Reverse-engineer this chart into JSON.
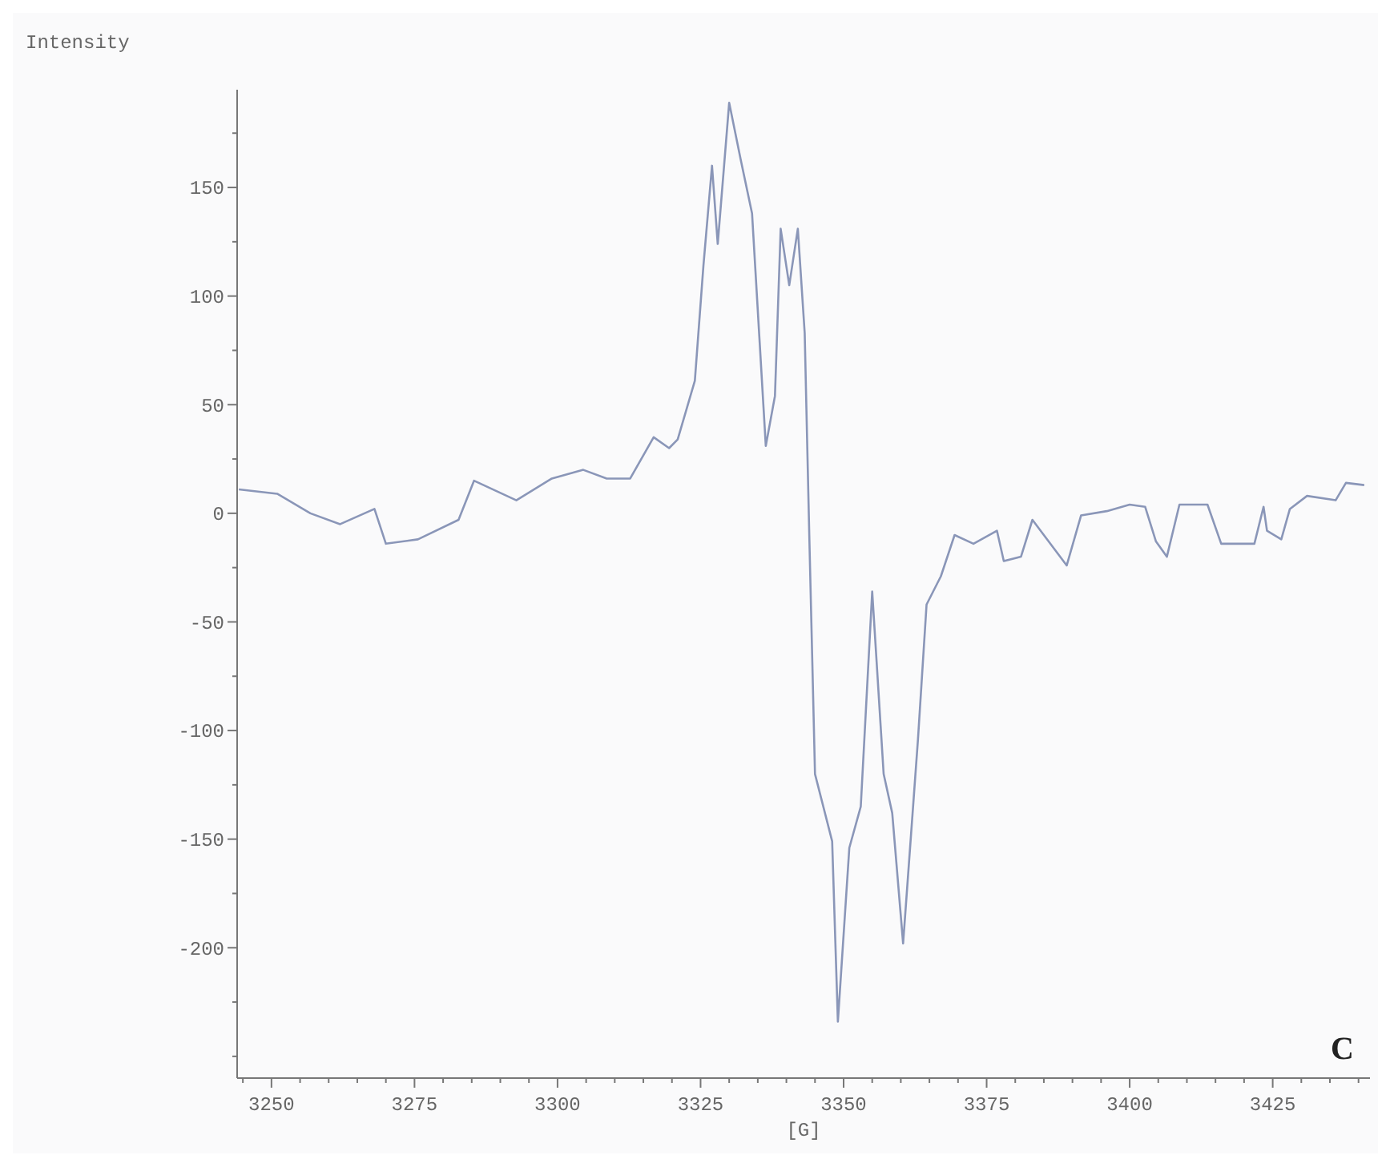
{
  "chart_data": {
    "type": "line",
    "ylabel": "Intensity",
    "xlabel": "[G]",
    "annotations": [
      "C"
    ],
    "x": [
      3244.3,
      3251,
      3256.8,
      3262,
      3268,
      3270,
      3275.6,
      3282.7,
      3285.4,
      3292.8,
      3299,
      3304.5,
      3308.6,
      3312.7,
      3316.8,
      3319.5,
      3321,
      3324,
      3325.5,
      3327,
      3328,
      3330,
      3332,
      3334,
      3336.4,
      3338,
      3339,
      3340.5,
      3342,
      3343.2,
      3344,
      3345,
      3348,
      3349,
      3351,
      3353,
      3355,
      3357,
      3358.5,
      3360.4,
      3363,
      3364.5,
      3367,
      3369.4,
      3372.7,
      3376.8,
      3378,
      3381,
      3383,
      3389,
      3391.5,
      3396,
      3400,
      3402.7,
      3404.6,
      3406.5,
      3408.7,
      3413.6,
      3416,
      3421.8,
      3423.4,
      3424,
      3426.5,
      3428,
      3431,
      3436,
      3437.8,
      3441
    ],
    "series": [
      {
        "color": "#8a96b8",
        "values": [
          11,
          9,
          0,
          -5,
          2,
          -14,
          -12,
          -3,
          15,
          6,
          16,
          20,
          16,
          16,
          35,
          30,
          34,
          61,
          114,
          160,
          124,
          189,
          163,
          138,
          31,
          54,
          131,
          105,
          131,
          83,
          -10,
          -120,
          -151,
          -234,
          -154,
          -135,
          -36,
          -120,
          -138,
          -198,
          -104,
          -42,
          -29,
          -10,
          -14,
          -8,
          -22,
          -20,
          -3,
          -24,
          -1,
          1,
          4,
          3,
          -13,
          -20,
          4,
          4,
          -14,
          -14,
          3,
          -8,
          -12,
          2,
          8,
          6,
          14,
          13
        ]
      }
    ],
    "xlim": [
      3244,
      3442
    ],
    "xticks": [
      {
        "value": 3245,
        "label": null
      },
      3250,
      {
        "value": 3255,
        "label": null
      },
      {
        "value": 3260,
        "label": null
      },
      {
        "value": 3265,
        "label": null
      },
      {
        "value": 3270,
        "label": null
      },
      3275,
      {
        "value": 3280,
        "label": null
      },
      {
        "value": 3285,
        "label": null
      },
      {
        "value": 3290,
        "label": null
      },
      {
        "value": 3295,
        "label": null
      },
      3300,
      {
        "value": 3305,
        "label": null
      },
      {
        "value": 3310,
        "label": null
      },
      {
        "value": 3315,
        "label": null
      },
      {
        "value": 3320,
        "label": null
      },
      3325,
      {
        "value": 3330,
        "label": null
      },
      {
        "value": 3335,
        "label": null
      },
      {
        "value": 3340,
        "label": null
      },
      {
        "value": 3345,
        "label": null
      },
      3350,
      {
        "value": 3355,
        "label": null
      },
      {
        "value": 3360,
        "label": null
      },
      {
        "value": 3365,
        "label": null
      },
      {
        "value": 3370,
        "label": null
      },
      3375,
      {
        "value": 3380,
        "label": null
      },
      {
        "value": 3385,
        "label": null
      },
      {
        "value": 3390,
        "label": null
      },
      {
        "value": 3395,
        "label": null
      },
      3400,
      {
        "value": 3405,
        "label": null
      },
      {
        "value": 3410,
        "label": null
      },
      {
        "value": 3415,
        "label": null
      },
      {
        "value": 3420,
        "label": null
      },
      3425,
      {
        "value": 3430,
        "label": null
      },
      {
        "value": 3435,
        "label": null
      },
      {
        "value": 3440,
        "label": null
      }
    ],
    "ylim": [
      -260,
      195
    ],
    "yticks": [
      {
        "value": -250,
        "label": null
      },
      {
        "value": -225,
        "label": null
      },
      -200,
      {
        "value": -175,
        "label": null
      },
      -150,
      {
        "value": -125,
        "label": null
      },
      -100,
      {
        "value": -75,
        "label": null
      },
      -50,
      {
        "value": -25,
        "label": null
      },
      0,
      {
        "value": 25,
        "label": null
      },
      50,
      {
        "value": 75,
        "label": null
      },
      100,
      {
        "value": 125,
        "label": null
      },
      150,
      {
        "value": 175,
        "label": null
      }
    ],
    "grid": false,
    "marker": "none",
    "line_style": "solid"
  }
}
